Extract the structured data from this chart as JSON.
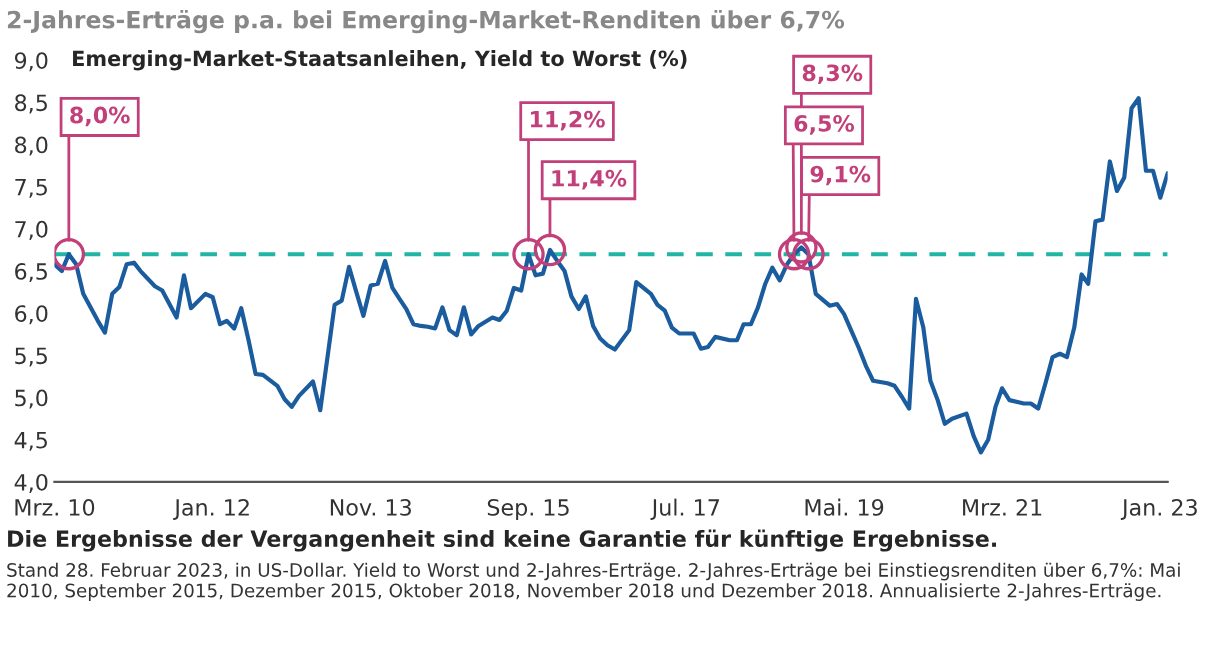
{
  "chart_data": {
    "type": "line",
    "title": "2-Jahres-Erträge p.a. bei Emerging-Market-Renditen über 6,7%",
    "ylabel": "Emerging-Market-Staatsanleihen, Yield to Worst (%)",
    "series": [
      {
        "color": "#1a5c9e",
        "x": [
          "2010-03",
          "2010-04",
          "2010-05",
          "2010-06",
          "2010-07",
          "2010-09",
          "2010-10",
          "2010-11",
          "2010-12",
          "2011-01",
          "2011-02",
          "2011-03",
          "2011-05",
          "2011-06",
          "2011-08",
          "2011-09",
          "2011-10",
          "2011-12",
          "2012-01",
          "2012-02",
          "2012-03",
          "2012-04",
          "2012-05",
          "2012-06",
          "2012-07",
          "2012-08",
          "2012-10",
          "2012-11",
          "2012-12",
          "2013-01",
          "2013-03",
          "2013-04",
          "2013-06",
          "2013-07",
          "2013-08",
          "2013-09",
          "2013-10",
          "2013-11",
          "2013-12",
          "2014-01",
          "2014-02",
          "2014-03",
          "2014-04",
          "2014-05",
          "2014-06",
          "2014-07",
          "2014-08",
          "2014-09",
          "2014-10",
          "2014-11",
          "2014-12",
          "2015-01",
          "2015-02",
          "2015-04",
          "2015-05",
          "2015-06",
          "2015-07",
          "2015-08",
          "2015-09",
          "2015-10",
          "2015-11",
          "2015-12",
          "2016-01",
          "2016-02",
          "2016-03",
          "2016-04",
          "2016-05",
          "2016-06",
          "2016-07",
          "2016-08",
          "2016-09",
          "2016-11",
          "2016-12",
          "2017-02",
          "2017-03",
          "2017-04",
          "2017-05",
          "2017-06",
          "2017-08",
          "2017-09",
          "2017-10",
          "2017-11",
          "2018-01",
          "2018-02",
          "2018-03",
          "2018-04",
          "2018-05",
          "2018-06",
          "2018-07",
          "2018-08",
          "2018-09",
          "2018-10",
          "2018-11",
          "2018-12",
          "2019-01",
          "2019-03",
          "2019-04",
          "2019-05",
          "2019-07",
          "2019-08",
          "2019-09",
          "2019-11",
          "2019-12",
          "2020-01",
          "2020-02",
          "2020-03",
          "2020-04",
          "2020-05",
          "2020-06",
          "2020-07",
          "2020-08",
          "2020-10",
          "2020-11",
          "2020-12",
          "2021-01",
          "2021-02",
          "2021-03",
          "2021-04",
          "2021-06",
          "2021-07",
          "2021-08",
          "2021-09",
          "2021-10",
          "2021-11",
          "2021-12",
          "2022-01",
          "2022-02",
          "2022-03",
          "2022-04",
          "2022-05",
          "2022-06",
          "2022-07",
          "2022-08",
          "2022-09",
          "2022-10",
          "2022-11",
          "2022-12",
          "2023-01",
          "2023-02"
        ],
        "values": [
          6.58,
          6.5,
          6.7,
          6.58,
          6.23,
          5.91,
          5.77,
          6.23,
          6.31,
          6.58,
          6.6,
          6.5,
          6.32,
          6.27,
          5.95,
          6.45,
          6.06,
          6.23,
          6.19,
          5.87,
          5.91,
          5.82,
          6.06,
          5.68,
          5.28,
          5.27,
          5.14,
          4.98,
          4.89,
          5.02,
          5.19,
          4.85,
          6.1,
          6.15,
          6.55,
          6.25,
          5.97,
          6.33,
          6.35,
          6.62,
          6.3,
          6.18,
          6.05,
          5.87,
          5.85,
          5.84,
          5.82,
          6.07,
          5.8,
          5.74,
          6.07,
          5.75,
          5.85,
          5.95,
          5.92,
          6.03,
          6.3,
          6.27,
          6.7,
          6.45,
          6.47,
          6.75,
          6.62,
          6.5,
          6.2,
          6.05,
          6.2,
          5.85,
          5.7,
          5.62,
          5.57,
          5.8,
          6.37,
          6.23,
          6.1,
          6.03,
          5.83,
          5.76,
          5.76,
          5.58,
          5.6,
          5.72,
          5.68,
          5.68,
          5.87,
          5.87,
          6.07,
          6.35,
          6.54,
          6.39,
          6.58,
          6.7,
          6.78,
          6.7,
          6.23,
          6.09,
          6.11,
          5.99,
          5.6,
          5.38,
          5.2,
          5.17,
          5.14,
          5.01,
          4.87,
          6.17,
          5.83,
          5.2,
          4.97,
          4.69,
          4.75,
          4.81,
          4.54,
          4.35,
          4.5,
          4.89,
          5.11,
          4.97,
          4.93,
          4.93,
          4.87,
          5.17,
          5.48,
          5.52,
          5.48,
          5.83,
          6.46,
          6.35,
          7.09,
          7.11,
          7.8,
          7.45,
          7.61,
          8.43,
          8.55,
          7.69,
          7.69,
          7.37,
          7.66
        ]
      },
      {
        "type": "scatter",
        "color": "#c2407a",
        "marker": "circle",
        "x": [
          "2010-05",
          "2015-09",
          "2015-12",
          "2018-10",
          "2018-11",
          "2018-12"
        ],
        "values": [
          6.7,
          6.7,
          6.75,
          6.7,
          6.78,
          6.7
        ]
      }
    ],
    "xlim": [
      "2010-03",
      "2023-02"
    ],
    "xticks": [
      {
        "value": "2010-03",
        "label": "Mrz. 10"
      },
      {
        "value": "2012-01",
        "label": "Jan. 12"
      },
      {
        "value": "2013-11",
        "label": "Nov. 13"
      },
      {
        "value": "2015-09",
        "label": "Sep. 15"
      },
      {
        "value": "2017-07",
        "label": "Jul. 17"
      },
      {
        "value": "2019-05",
        "label": "Mai. 19"
      },
      {
        "value": "2021-03",
        "label": "Mrz. 21"
      },
      {
        "value": "2023-01",
        "label": "Jan. 23"
      }
    ],
    "ylim": [
      4.0,
      9.0
    ],
    "yticks": [
      {
        "value": 4.0,
        "label": "4,0"
      },
      {
        "value": 4.5,
        "label": "4,5"
      },
      {
        "value": 5.0,
        "label": "5,0"
      },
      {
        "value": 5.5,
        "label": "5,5"
      },
      {
        "value": 6.0,
        "label": "6,0"
      },
      {
        "value": 6.5,
        "label": "6,5"
      },
      {
        "value": 7.0,
        "label": "7,0"
      },
      {
        "value": 7.5,
        "label": "7,5"
      },
      {
        "value": 8.0,
        "label": "8,0"
      },
      {
        "value": 8.5,
        "label": "8,5"
      },
      {
        "value": 9.0,
        "label": "9,0"
      }
    ],
    "ref_lines": [
      {
        "axis": "y",
        "value": 6.7,
        "color": "#20b5a5",
        "line_style": "dashed"
      }
    ],
    "grid": false,
    "legend": false,
    "annotations": [
      {
        "text": "8,0%",
        "x": "2010-05",
        "y": 6.7
      },
      {
        "text": "11,2%",
        "x": "2015-09",
        "y": 6.7
      },
      {
        "text": "11,4%",
        "x": "2015-12",
        "y": 6.75
      },
      {
        "text": "6,5%",
        "x": "2018-10",
        "y": 6.7
      },
      {
        "text": "8,3%",
        "x": "2018-11",
        "y": 6.78
      },
      {
        "text": "9,1%",
        "x": "2018-12",
        "y": 6.7
      },
      "Die Ergebnisse der Vergangenheit sind keine Garantie für künftige Ergebnisse.",
      "Stand 28. Februar 2023, in US-Dollar. Yield to Worst und 2-Jahres-Erträge. 2-Jahres-Erträge bei Einstiegsrenditen über 6,7%: Mai 2010, September 2015, Dezember 2015, Oktober 2018, November 2018 und Dezember 2018. Annualisierte 2-Jahres-Erträge."
    ]
  }
}
